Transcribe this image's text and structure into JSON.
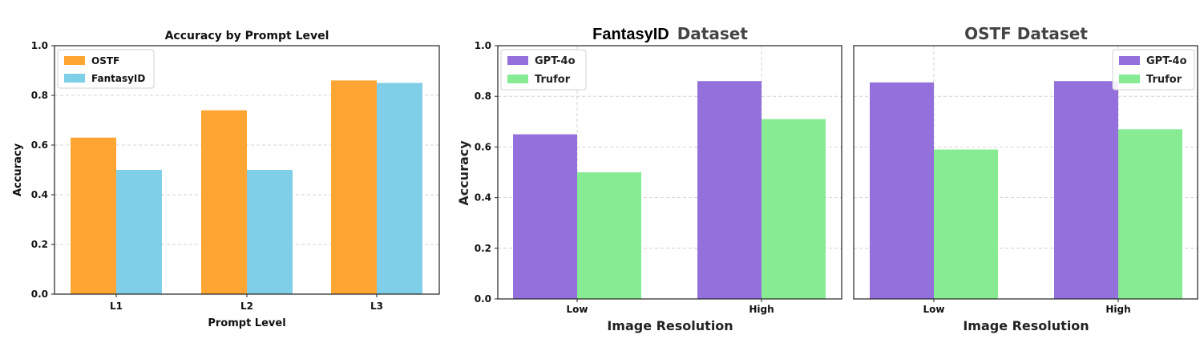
{
  "chart_data": [
    {
      "type": "bar",
      "title": "Accuracy by Prompt Level",
      "xlabel": "Prompt Level",
      "ylabel": "Accuracy",
      "categories": [
        "L1",
        "L2",
        "L3"
      ],
      "ylim": [
        0,
        1.0
      ],
      "yticks": [
        "0.0",
        "0.2",
        "0.4",
        "0.6",
        "0.8",
        "1.0"
      ],
      "grid": "y-dashed",
      "legend": "top-left",
      "series": [
        {
          "name": "OSTF",
          "color": "#FFA533",
          "values": [
            0.63,
            0.74,
            0.86
          ]
        },
        {
          "name": "FantasyID",
          "color": "#7FCFE8",
          "values": [
            0.5,
            0.5,
            0.85
          ]
        }
      ]
    },
    {
      "type": "bar",
      "title_part1": "FantasyID",
      "title_part2": "Dataset",
      "xlabel": "Image Resolution",
      "ylabel": "Accuracy",
      "categories": [
        "Low",
        "High"
      ],
      "ylim": [
        0,
        1.0
      ],
      "yticks": [
        "0.0",
        "0.2",
        "0.4",
        "0.6",
        "0.8",
        "1.0"
      ],
      "grid": "both-dashed",
      "legend": "top-left",
      "series": [
        {
          "name": "GPT-4o",
          "color": "#9370DB",
          "values": [
            0.65,
            0.86
          ]
        },
        {
          "name": "Trufor",
          "color": "#86EB93",
          "values": [
            0.5,
            0.71
          ]
        }
      ]
    },
    {
      "type": "bar",
      "title": "OSTF Dataset",
      "xlabel": "Image Resolution",
      "categories": [
        "Low",
        "High"
      ],
      "ylim": [
        0,
        1.0
      ],
      "grid": "both-dashed",
      "legend": "top-right",
      "series": [
        {
          "name": "GPT-4o",
          "color": "#9370DB",
          "values": [
            0.855,
            0.86
          ]
        },
        {
          "name": "Trufor",
          "color": "#86EB93",
          "values": [
            0.59,
            0.67
          ]
        }
      ]
    }
  ]
}
